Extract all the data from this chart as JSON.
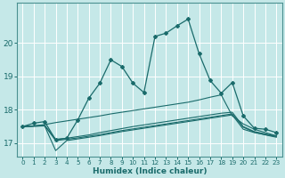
{
  "xlabel": "Humidex (Indice chaleur)",
  "bg_color": "#c5e8e8",
  "line_color": "#1a6b6b",
  "grid_color": "#b0d8d8",
  "xlim": [
    -0.5,
    23.5
  ],
  "ylim": [
    16.6,
    21.2
  ],
  "yticks": [
    17,
    18,
    19,
    20
  ],
  "xticks": [
    0,
    1,
    2,
    3,
    4,
    5,
    6,
    7,
    8,
    9,
    10,
    11,
    12,
    13,
    14,
    15,
    16,
    17,
    18,
    19,
    20,
    21,
    22,
    23
  ],
  "main_line": {
    "x": [
      0,
      1,
      2,
      3,
      4,
      5,
      6,
      7,
      8,
      9,
      10,
      11,
      12,
      13,
      14,
      15,
      16,
      17,
      18,
      19,
      20,
      21,
      22,
      23
    ],
    "y": [
      17.5,
      17.6,
      17.65,
      17.1,
      17.15,
      17.7,
      18.35,
      18.8,
      19.5,
      19.3,
      18.8,
      18.52,
      20.2,
      20.3,
      20.52,
      20.72,
      19.68,
      18.88,
      18.5,
      18.82,
      17.82,
      17.45,
      17.42,
      17.32
    ]
  },
  "flat_lines": [
    {
      "x": [
        0,
        1,
        2,
        3,
        4,
        5,
        6,
        7,
        8,
        9,
        10,
        11,
        12,
        13,
        14,
        15,
        16,
        17,
        18,
        19,
        20,
        21,
        22,
        23
      ],
      "y": [
        17.5,
        17.52,
        17.56,
        17.62,
        17.67,
        17.72,
        17.77,
        17.82,
        17.88,
        17.93,
        17.98,
        18.03,
        18.08,
        18.13,
        18.18,
        18.23,
        18.3,
        18.38,
        18.45,
        17.82,
        17.58,
        17.42,
        17.32,
        17.22
      ]
    },
    {
      "x": [
        0,
        1,
        2,
        3,
        4,
        5,
        6,
        7,
        8,
        9,
        10,
        11,
        12,
        13,
        14,
        15,
        16,
        17,
        18,
        19,
        20,
        21,
        22,
        23
      ],
      "y": [
        17.5,
        17.52,
        17.54,
        17.12,
        17.15,
        17.2,
        17.25,
        17.32,
        17.38,
        17.44,
        17.5,
        17.55,
        17.6,
        17.65,
        17.7,
        17.75,
        17.8,
        17.85,
        17.9,
        17.93,
        17.5,
        17.35,
        17.28,
        17.22
      ]
    },
    {
      "x": [
        0,
        1,
        2,
        3,
        4,
        5,
        6,
        7,
        8,
        9,
        10,
        11,
        12,
        13,
        14,
        15,
        16,
        17,
        18,
        19,
        20,
        21,
        22,
        23
      ],
      "y": [
        17.5,
        17.51,
        17.52,
        16.78,
        17.08,
        17.13,
        17.18,
        17.23,
        17.29,
        17.35,
        17.4,
        17.45,
        17.5,
        17.55,
        17.6,
        17.65,
        17.7,
        17.75,
        17.8,
        17.85,
        17.42,
        17.32,
        17.26,
        17.2
      ]
    },
    {
      "x": [
        0,
        1,
        2,
        3,
        4,
        5,
        6,
        7,
        8,
        9,
        10,
        11,
        12,
        13,
        14,
        15,
        16,
        17,
        18,
        19,
        20,
        21,
        22,
        23
      ],
      "y": [
        17.5,
        17.51,
        17.53,
        17.08,
        17.12,
        17.16,
        17.21,
        17.26,
        17.32,
        17.38,
        17.43,
        17.48,
        17.53,
        17.58,
        17.63,
        17.68,
        17.73,
        17.78,
        17.83,
        17.88,
        17.48,
        17.33,
        17.25,
        17.18
      ]
    }
  ]
}
